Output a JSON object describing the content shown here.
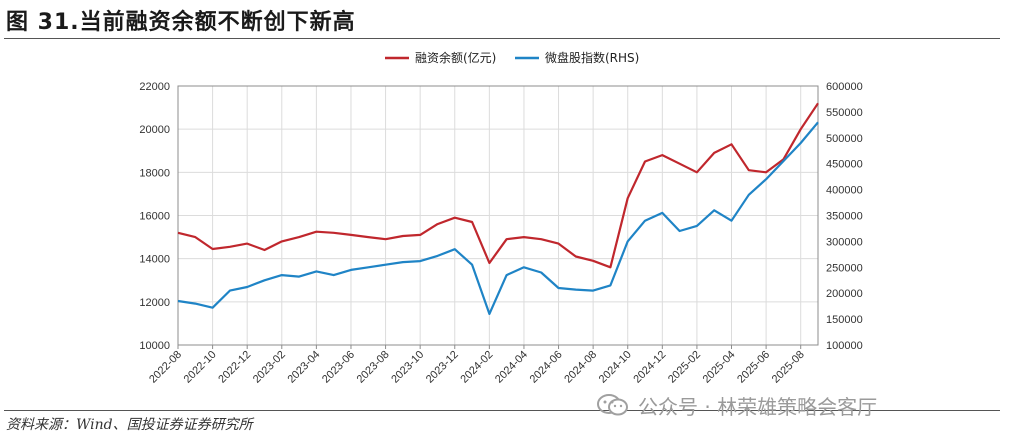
{
  "header": {
    "title": "图 31.当前融资余额不断创下新高"
  },
  "footer": {
    "source": "资料来源：Wind、国投证券证券研究所"
  },
  "watermark": {
    "text": "公众号 · 林荣雄策略会客厅",
    "icon": "wechat-icon"
  },
  "colors": {
    "left_series": "#c0272d",
    "right_series": "#1f84c6",
    "grid": "#dcdcdc",
    "axis": "#8c8c8c"
  },
  "chart_data": {
    "type": "line",
    "title": "",
    "x_tick_labels": [
      "2022-08",
      "2022-10",
      "2022-12",
      "2023-02",
      "2023-04",
      "2023-06",
      "2023-08",
      "2023-10",
      "2023-12",
      "2024-02",
      "2024-04",
      "2024-06",
      "2024-08",
      "2024-10",
      "2024-12",
      "2025-02",
      "2025-04",
      "2025-06",
      "2025-08"
    ],
    "y_left": {
      "ylim": [
        10000,
        22000
      ],
      "ticks": [
        10000,
        12000,
        14000,
        16000,
        18000,
        20000,
        22000
      ]
    },
    "y_right": {
      "ylim": [
        100000,
        600000
      ],
      "ticks": [
        100000,
        150000,
        200000,
        250000,
        300000,
        350000,
        400000,
        450000,
        500000,
        550000,
        600000
      ]
    },
    "grid": true,
    "legend_position": "top",
    "series": [
      {
        "name": "融资余额(亿元)",
        "axis": "left",
        "color": "#c0272d",
        "points": [
          [
            "2022-08",
            15200
          ],
          [
            "2022-09",
            15000
          ],
          [
            "2022-10",
            14450
          ],
          [
            "2022-11",
            14550
          ],
          [
            "2022-12",
            14700
          ],
          [
            "2023-01",
            14400
          ],
          [
            "2023-02",
            14800
          ],
          [
            "2023-03",
            15000
          ],
          [
            "2023-04",
            15250
          ],
          [
            "2023-05",
            15200
          ],
          [
            "2023-06",
            15100
          ],
          [
            "2023-07",
            15000
          ],
          [
            "2023-08",
            14900
          ],
          [
            "2023-09",
            15050
          ],
          [
            "2023-10",
            15100
          ],
          [
            "2023-11",
            15600
          ],
          [
            "2023-12",
            15900
          ],
          [
            "2024-01",
            15700
          ],
          [
            "2024-02",
            13800
          ],
          [
            "2024-03",
            14900
          ],
          [
            "2024-04",
            15000
          ],
          [
            "2024-05",
            14900
          ],
          [
            "2024-06",
            14700
          ],
          [
            "2024-07",
            14100
          ],
          [
            "2024-08",
            13900
          ],
          [
            "2024-09",
            13600
          ],
          [
            "2024-10",
            16800
          ],
          [
            "2024-11",
            18500
          ],
          [
            "2024-12",
            18800
          ],
          [
            "2025-01",
            18400
          ],
          [
            "2025-02",
            18000
          ],
          [
            "2025-03",
            18900
          ],
          [
            "2025-04",
            19300
          ],
          [
            "2025-05",
            18100
          ],
          [
            "2025-06",
            18000
          ],
          [
            "2025-07",
            18600
          ],
          [
            "2025-08",
            20000
          ],
          [
            "2025-09",
            21200
          ]
        ]
      },
      {
        "name": "微盘股指数(RHS)",
        "axis": "right",
        "color": "#1f84c6",
        "points": [
          [
            "2022-08",
            185000
          ],
          [
            "2022-09",
            180000
          ],
          [
            "2022-10",
            172000
          ],
          [
            "2022-11",
            205000
          ],
          [
            "2022-12",
            212000
          ],
          [
            "2023-01",
            225000
          ],
          [
            "2023-02",
            235000
          ],
          [
            "2023-03",
            232000
          ],
          [
            "2023-04",
            242000
          ],
          [
            "2023-05",
            235000
          ],
          [
            "2023-06",
            245000
          ],
          [
            "2023-07",
            250000
          ],
          [
            "2023-08",
            255000
          ],
          [
            "2023-09",
            260000
          ],
          [
            "2023-10",
            262000
          ],
          [
            "2023-11",
            272000
          ],
          [
            "2023-12",
            285000
          ],
          [
            "2024-01",
            255000
          ],
          [
            "2024-02",
            160000
          ],
          [
            "2024-03",
            235000
          ],
          [
            "2024-04",
            250000
          ],
          [
            "2024-05",
            240000
          ],
          [
            "2024-06",
            210000
          ],
          [
            "2024-07",
            207000
          ],
          [
            "2024-08",
            205000
          ],
          [
            "2024-09",
            215000
          ],
          [
            "2024-10",
            300000
          ],
          [
            "2024-11",
            340000
          ],
          [
            "2024-12",
            355000
          ],
          [
            "2025-01",
            320000
          ],
          [
            "2025-02",
            330000
          ],
          [
            "2025-03",
            360000
          ],
          [
            "2025-04",
            340000
          ],
          [
            "2025-05",
            390000
          ],
          [
            "2025-06",
            420000
          ],
          [
            "2025-07",
            455000
          ],
          [
            "2025-08",
            490000
          ],
          [
            "2025-09",
            530000
          ]
        ]
      }
    ]
  }
}
